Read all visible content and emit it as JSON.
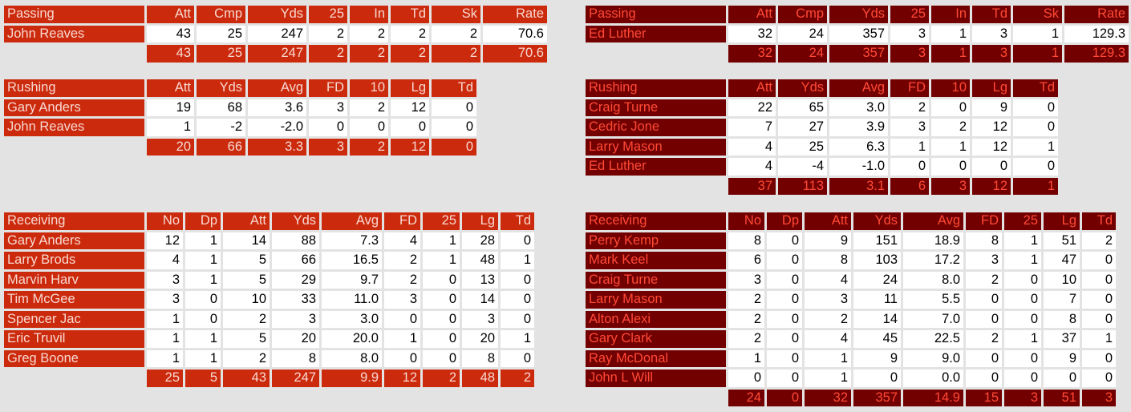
{
  "home": {
    "passing": {
      "header": [
        "Passing",
        "Att",
        "Cmp",
        "Yds",
        "25",
        "In",
        "Td",
        "Sk",
        "Rate"
      ],
      "rows": [
        [
          "John Reaves",
          "43",
          "25",
          "247",
          "2",
          "2",
          "2",
          "2",
          "70.6"
        ]
      ],
      "total": [
        "",
        "43",
        "25",
        "247",
        "2",
        "2",
        "2",
        "2",
        "70.6"
      ]
    },
    "rushing": {
      "header": [
        "Rushing",
        "Att",
        "Yds",
        "Avg",
        "FD",
        "10",
        "Lg",
        "Td"
      ],
      "rows": [
        [
          "Gary Anders",
          "19",
          "68",
          "3.6",
          "3",
          "2",
          "12",
          "0"
        ],
        [
          "John Reaves",
          "1",
          "-2",
          "-2.0",
          "0",
          "0",
          "0",
          "0"
        ]
      ],
      "total": [
        "",
        "20",
        "66",
        "3.3",
        "3",
        "2",
        "12",
        "0"
      ]
    },
    "receiving": {
      "header": [
        "Receiving",
        "No",
        "Dp",
        "Att",
        "Yds",
        "Avg",
        "FD",
        "25",
        "Lg",
        "Td"
      ],
      "rows": [
        [
          "Gary Anders",
          "12",
          "1",
          "14",
          "88",
          "7.3",
          "4",
          "1",
          "28",
          "0"
        ],
        [
          "Larry Brods",
          "4",
          "1",
          "5",
          "66",
          "16.5",
          "2",
          "1",
          "48",
          "1"
        ],
        [
          "Marvin Harv",
          "3",
          "1",
          "5",
          "29",
          "9.7",
          "2",
          "0",
          "13",
          "0"
        ],
        [
          "Tim McGee",
          "3",
          "0",
          "10",
          "33",
          "11.0",
          "3",
          "0",
          "14",
          "0"
        ],
        [
          "Spencer Jac",
          "1",
          "0",
          "2",
          "3",
          "3.0",
          "0",
          "0",
          "3",
          "0"
        ],
        [
          "Eric Truvil",
          "1",
          "1",
          "5",
          "20",
          "20.0",
          "1",
          "0",
          "20",
          "1"
        ],
        [
          "Greg Boone",
          "1",
          "1",
          "2",
          "8",
          "8.0",
          "0",
          "0",
          "8",
          "0"
        ]
      ],
      "total": [
        "",
        "25",
        "5",
        "43",
        "247",
        "9.9",
        "12",
        "2",
        "48",
        "2"
      ]
    }
  },
  "away": {
    "passing": {
      "header": [
        "Passing",
        "Att",
        "Cmp",
        "Yds",
        "25",
        "In",
        "Td",
        "Sk",
        "Rate"
      ],
      "rows": [
        [
          "Ed Luther",
          "32",
          "24",
          "357",
          "3",
          "1",
          "3",
          "1",
          "129.3"
        ]
      ],
      "total": [
        "",
        "32",
        "24",
        "357",
        "3",
        "1",
        "3",
        "1",
        "129.3"
      ]
    },
    "rushing": {
      "header": [
        "Rushing",
        "Att",
        "Yds",
        "Avg",
        "FD",
        "10",
        "Lg",
        "Td"
      ],
      "rows": [
        [
          "Craig Turne",
          "22",
          "65",
          "3.0",
          "2",
          "0",
          "9",
          "0"
        ],
        [
          "Cedric Jone",
          "7",
          "27",
          "3.9",
          "3",
          "2",
          "12",
          "0"
        ],
        [
          "Larry Mason",
          "4",
          "25",
          "6.3",
          "1",
          "1",
          "12",
          "1"
        ],
        [
          "Ed Luther",
          "4",
          "-4",
          "-1.0",
          "0",
          "0",
          "0",
          "0"
        ]
      ],
      "total": [
        "",
        "37",
        "113",
        "3.1",
        "6",
        "3",
        "12",
        "1"
      ]
    },
    "receiving": {
      "header": [
        "Receiving",
        "No",
        "Dp",
        "Att",
        "Yds",
        "Avg",
        "FD",
        "25",
        "Lg",
        "Td"
      ],
      "rows": [
        [
          "Perry Kemp",
          "8",
          "0",
          "9",
          "151",
          "18.9",
          "8",
          "1",
          "51",
          "2"
        ],
        [
          "Mark Keel",
          "6",
          "0",
          "8",
          "103",
          "17.2",
          "3",
          "1",
          "47",
          "0"
        ],
        [
          "Craig Turne",
          "3",
          "0",
          "4",
          "24",
          "8.0",
          "2",
          "0",
          "10",
          "0"
        ],
        [
          "Larry Mason",
          "2",
          "0",
          "3",
          "11",
          "5.5",
          "0",
          "0",
          "7",
          "0"
        ],
        [
          "Alton Alexi",
          "2",
          "0",
          "2",
          "14",
          "7.0",
          "0",
          "0",
          "8",
          "0"
        ],
        [
          "Gary Clark",
          "2",
          "0",
          "4",
          "45",
          "22.5",
          "2",
          "1",
          "37",
          "1"
        ],
        [
          "Ray McDonal",
          "1",
          "0",
          "1",
          "9",
          "9.0",
          "0",
          "0",
          "9",
          "0"
        ],
        [
          "John L Will",
          "0",
          "0",
          "1",
          "0",
          "0.0",
          "0",
          "0",
          "0",
          "0"
        ]
      ],
      "total": [
        "",
        "24",
        "0",
        "32",
        "357",
        "14.9",
        "15",
        "3",
        "51",
        "3"
      ]
    }
  },
  "colors": {
    "home_header": "#cc2a0c",
    "home_text": "#f7d9d2",
    "away_header": "#730000",
    "away_text": "#ff4a36",
    "background": "#e3e3e3"
  }
}
